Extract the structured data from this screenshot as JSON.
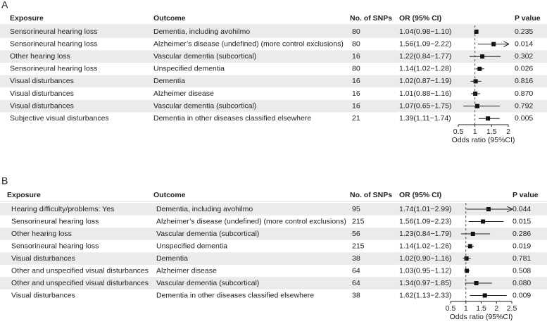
{
  "chart_data": [
    {
      "type": "forest",
      "panel": "A",
      "columns": [
        "Exposure",
        "Outcome",
        "No. of SNPs",
        "OR (95% CI)",
        "P value"
      ],
      "exposure": [
        "Sensorineural hearing loss",
        "Sensorineural hearing loss",
        "Other hearing loss",
        "Sensorineural hearing loss",
        "Visual disturbances",
        "Visual disturbances",
        "Visual disturbances",
        "Subjective visual disturbances"
      ],
      "outcome": [
        "Dementia, including avohilmo",
        "Alzheimer’s disease (undefined) (more control exclusions)",
        "Vascular dementia (subcortical)",
        "Unspecified dementia",
        "Dementia",
        "Alzheimer disease",
        "Vascular dementia (subcortical)",
        "Dementia in other diseases classified elsewhere"
      ],
      "snps": [
        80,
        80,
        16,
        80,
        16,
        16,
        16,
        21
      ],
      "values": [
        1.04,
        1.56,
        1.22,
        1.14,
        1.02,
        1.01,
        1.07,
        1.39
      ],
      "lower": [
        0.98,
        1.09,
        0.84,
        1.02,
        0.87,
        0.88,
        0.65,
        1.11
      ],
      "upper": [
        1.1,
        2.22,
        1.77,
        1.28,
        1.19,
        1.16,
        1.75,
        1.74
      ],
      "value_labels": [
        "1.04(0.98−1.10)",
        "1.56(1.09−2.22)",
        "1.22(0.84−1.77)",
        "1.14(1.02−1.28)",
        "1.02(0.87−1.19)",
        "1.01(0.88−1.16)",
        "1.07(0.65−1.75)",
        "1.39(1.11−1.74)"
      ],
      "p_values": [
        "0.235",
        "0.014",
        "0.302",
        "0.026",
        "0.816",
        "0.870",
        "0.792",
        "0.005"
      ],
      "xlim": [
        0.5,
        2
      ],
      "xticks": [
        0.5,
        1,
        1.5,
        2
      ],
      "reference_line": 1,
      "xlabel": "Odds ratio (95%CI)"
    },
    {
      "type": "forest",
      "panel": "B",
      "columns": [
        "Exposure",
        "Outcome",
        "No. of SNPs",
        "OR (95% CI)",
        "P value"
      ],
      "exposure": [
        "Hearing difficulty/problems: Yes",
        "Sensorineural hearing loss",
        "Other hearing loss",
        "Sensorineural hearing loss",
        "Visual disturbances",
        "Other and unspecified visual disturbances",
        "Other and unspecified visual disturbances",
        "Visual disturbances"
      ],
      "outcome": [
        "Dementia, including avohilmo",
        "Alzheimer’s disease (undefined) (more control exclusions)",
        "Vascular dementia (subcortical)",
        "Unspecified dementia",
        "Dementia",
        "Alzheimer disease",
        "Vascular dementia (subcortical)",
        "Dementia in other diseases classified elsewhere"
      ],
      "snps": [
        95,
        215,
        56,
        215,
        38,
        64,
        64,
        38
      ],
      "values": [
        1.74,
        1.56,
        1.23,
        1.14,
        1.02,
        1.03,
        1.34,
        1.62
      ],
      "lower": [
        1.01,
        1.09,
        0.84,
        1.02,
        0.9,
        0.95,
        0.97,
        1.13
      ],
      "upper": [
        2.99,
        2.23,
        1.79,
        1.26,
        1.16,
        1.12,
        1.85,
        2.33
      ],
      "value_labels": [
        "1.74(1.01−2.99)",
        "1.56(1.09−2.23)",
        "1.23(0.84−1.79)",
        "1.14(1.02−1.26)",
        "1.02(0.90−1.16)",
        "1.03(0.95−1.12)",
        "1.34(0.97−1.85)",
        "1.62(1.13−2.33)"
      ],
      "p_values": [
        "0.044",
        "0.015",
        "0.286",
        "0.019",
        "0.781",
        "0.508",
        "0.080",
        "0.009"
      ],
      "xlim": [
        0.5,
        2.5
      ],
      "xticks": [
        0.5,
        1,
        1.5,
        2,
        2.5
      ],
      "reference_line": 1,
      "xlabel": "Odds ratio (95%CI)"
    }
  ]
}
